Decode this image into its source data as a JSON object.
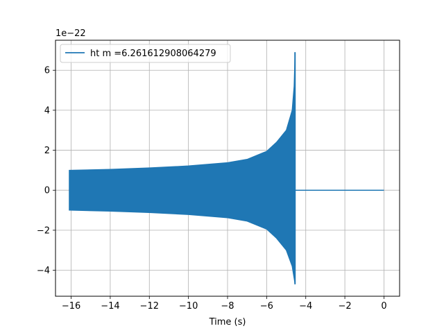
{
  "chart_data": {
    "type": "line",
    "title": "",
    "xlabel": "Time (s)",
    "ylabel": "",
    "y_offset_label": "1e−22",
    "xlim": [
      -16.8,
      0.8
    ],
    "ylim": [
      -5.3,
      7.5
    ],
    "x_ticks": [
      -16,
      -14,
      -12,
      -10,
      -8,
      -6,
      -4,
      -2,
      0
    ],
    "x_tick_labels": [
      "−16",
      "−14",
      "−12",
      "−10",
      "−8",
      "−6",
      "−4",
      "−2",
      "0"
    ],
    "y_ticks": [
      -4,
      -2,
      0,
      2,
      4,
      6
    ],
    "y_tick_labels": [
      "−4",
      "−2",
      "0",
      "2",
      "4",
      "6"
    ],
    "grid": true,
    "legend_position": "top-left",
    "series": [
      {
        "name": "ht m =6.261612908064279",
        "color": "#1f77b4",
        "signal_start": -16.1,
        "merger_time": -4.55,
        "end_time": 0.0,
        "envelope_upper": [
          [
            -16.1,
            1.0
          ],
          [
            -14,
            1.05
          ],
          [
            -12,
            1.12
          ],
          [
            -10,
            1.22
          ],
          [
            -8,
            1.38
          ],
          [
            -7,
            1.55
          ],
          [
            -6,
            1.95
          ],
          [
            -5.5,
            2.4
          ],
          [
            -5.0,
            3.0
          ],
          [
            -4.7,
            4.0
          ],
          [
            -4.6,
            5.2
          ],
          [
            -4.55,
            6.9
          ]
        ],
        "envelope_lower": [
          [
            -16.1,
            -1.0
          ],
          [
            -14,
            -1.05
          ],
          [
            -12,
            -1.12
          ],
          [
            -10,
            -1.22
          ],
          [
            -8,
            -1.38
          ],
          [
            -7,
            -1.55
          ],
          [
            -6,
            -1.95
          ],
          [
            -5.5,
            -2.4
          ],
          [
            -5.0,
            -3.0
          ],
          [
            -4.7,
            -3.8
          ],
          [
            -4.6,
            -4.4
          ],
          [
            -4.55,
            -4.7
          ]
        ]
      }
    ]
  }
}
